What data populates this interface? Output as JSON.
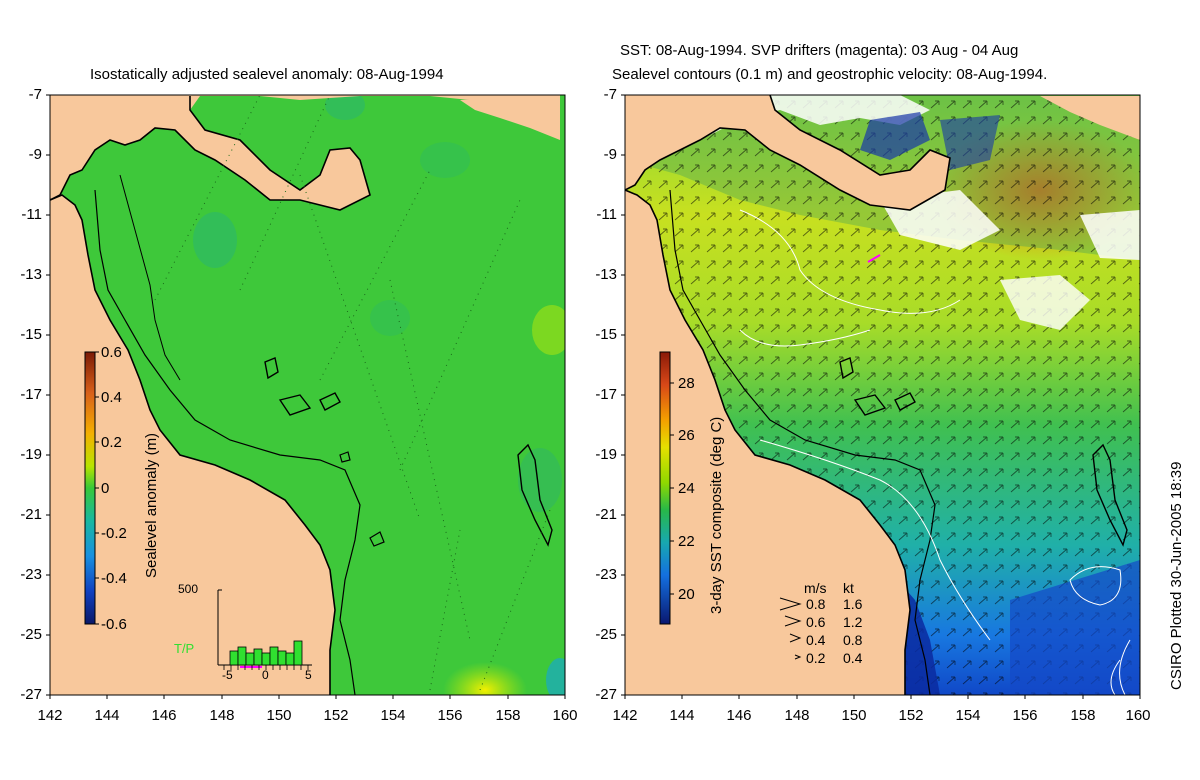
{
  "left_map": {
    "title": "Isostatically adjusted sealevel anomaly: 08-Aug-1994",
    "y_ticks": [
      "-7",
      "-9",
      "-11",
      "-13",
      "-15",
      "-17",
      "-19",
      "-21",
      "-23",
      "-25",
      "-27"
    ],
    "x_ticks": [
      "142",
      "144",
      "146",
      "148",
      "150",
      "152",
      "154",
      "156",
      "158",
      "160"
    ],
    "colorbar": {
      "label": "Sealevel anomaly (m)",
      "ticks": [
        "0.6",
        "0.4",
        "0.2",
        "0",
        "-0.2",
        "-0.4",
        "-0.6"
      ],
      "range": [
        -0.6,
        0.6
      ]
    },
    "histogram": {
      "label": "T/P",
      "y_max": "500",
      "x_ticks": [
        "-5",
        "0",
        "5"
      ],
      "bar_heights": [
        0.35,
        0.45,
        0.3,
        0.4,
        0.3,
        0.45,
        0.35,
        0.3,
        0.6
      ]
    }
  },
  "right_map": {
    "title_line1": "SST: 08-Aug-1994. SVP drifters (magenta): 03 Aug - 04 Aug",
    "title_line2": "Sealevel contours (0.1 m) and geostrophic velocity: 08-Aug-1994.",
    "y_ticks": [
      "-7",
      "-9",
      "-11",
      "-13",
      "-15",
      "-17",
      "-19",
      "-21",
      "-23",
      "-25",
      "-27"
    ],
    "x_ticks": [
      "142",
      "144",
      "146",
      "148",
      "150",
      "152",
      "154",
      "156",
      "158",
      "160"
    ],
    "colorbar": {
      "label": "3-day SST composite (deg C)",
      "ticks": [
        "28",
        "26",
        "24",
        "22",
        "20"
      ],
      "range": [
        19,
        29.5
      ]
    },
    "velocity_legend": {
      "header_ms": "m/s",
      "header_kt": "kt",
      "rows": [
        {
          "ms": "0.8",
          "kt": "1.6"
        },
        {
          "ms": "0.6",
          "kt": "1.2"
        },
        {
          "ms": "0.4",
          "kt": "0.8"
        },
        {
          "ms": "0.2",
          "kt": "0.4"
        }
      ]
    }
  },
  "credit": "CSIRO Plotted 30-Jun-2005 18:39",
  "colors": {
    "land": "#f8c89c",
    "coast": "#000000",
    "ocean_left": "#3ec83a"
  }
}
